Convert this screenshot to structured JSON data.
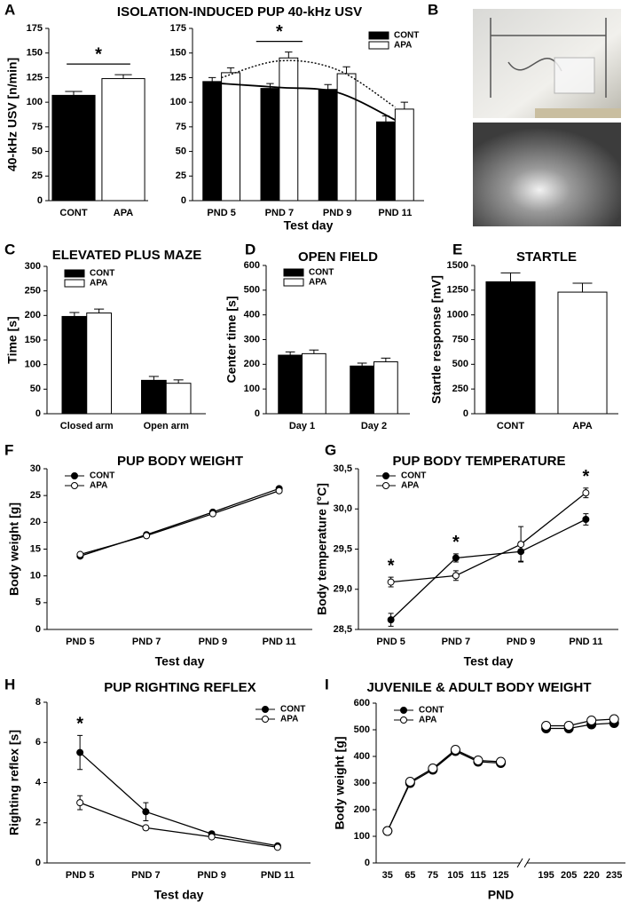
{
  "chart_data": [
    {
      "type": "bar",
      "panel": "A",
      "title": "ISOLATION-INDUCED PUP 40-kHz USV",
      "ylabel": "40-kHz USV [n/min]",
      "categories": [
        "CONT",
        "APA"
      ],
      "values": [
        107,
        124
      ],
      "errors": [
        4,
        4
      ],
      "colors": [
        "#000000",
        "#ffffff"
      ],
      "ylim": [
        0,
        175
      ],
      "yticks": [
        0,
        25,
        50,
        75,
        100,
        125,
        150,
        175
      ],
      "annotations": [
        {
          "text": "*"
        }
      ]
    },
    {
      "type": "bar",
      "xlabel": "Test day",
      "categories": [
        "PND 5",
        "PND 7",
        "PND 9",
        "PND 11"
      ],
      "series": [
        {
          "name": "CONT",
          "color": "#000000",
          "values": [
            121,
            114,
            113,
            80
          ],
          "errors": [
            4,
            5,
            5,
            6
          ]
        },
        {
          "name": "APA",
          "color": "#ffffff",
          "values": [
            130,
            145,
            129,
            93
          ],
          "errors": [
            5,
            6,
            7,
            7
          ]
        }
      ],
      "trends": [
        {
          "style": "solid",
          "values": [
            119,
            115,
            110,
            82
          ]
        },
        {
          "style": "dotted",
          "values": [
            125,
            142,
            133,
            95
          ]
        }
      ],
      "ylim": [
        0,
        175
      ],
      "yticks": [
        0,
        25,
        50,
        75,
        100,
        125,
        150,
        175
      ],
      "legend": "upper right",
      "annotations": [
        {
          "text": "*",
          "at": "PND 7"
        }
      ]
    },
    {
      "type": "image",
      "panel": "B"
    },
    {
      "type": "bar",
      "panel": "C",
      "title": "ELEVATED PLUS MAZE",
      "ylabel": "Time [s]",
      "categories": [
        "Closed arm",
        "Open arm"
      ],
      "series": [
        {
          "name": "CONT",
          "color": "#000000",
          "values": [
            198,
            68
          ],
          "errors": [
            8,
            8
          ]
        },
        {
          "name": "APA",
          "color": "#ffffff",
          "values": [
            205,
            62
          ],
          "errors": [
            8,
            7
          ]
        }
      ],
      "ylim": [
        0,
        300
      ],
      "yticks": [
        0,
        50,
        100,
        150,
        200,
        250,
        300
      ],
      "legend": "upper left"
    },
    {
      "type": "bar",
      "panel": "D",
      "title": "OPEN FIELD",
      "ylabel": "Center time [s]",
      "categories": [
        "Day 1",
        "Day 2"
      ],
      "series": [
        {
          "name": "CONT",
          "color": "#000000",
          "values": [
            237,
            193
          ],
          "errors": [
            13,
            12
          ]
        },
        {
          "name": "APA",
          "color": "#ffffff",
          "values": [
            243,
            210
          ],
          "errors": [
            15,
            15
          ]
        }
      ],
      "ylim": [
        0,
        600
      ],
      "yticks": [
        0,
        100,
        200,
        300,
        400,
        500,
        600
      ],
      "legend": "upper left"
    },
    {
      "type": "bar",
      "panel": "E",
      "title": "STARTLE",
      "ylabel": "Startle response [mV]",
      "categories": [
        "CONT",
        "APA"
      ],
      "values": [
        1335,
        1230
      ],
      "errors": [
        90,
        90
      ],
      "colors": [
        "#000000",
        "#ffffff"
      ],
      "ylim": [
        0,
        1500
      ],
      "yticks": [
        0,
        250,
        500,
        750,
        1000,
        1250,
        1500
      ]
    },
    {
      "type": "line",
      "panel": "F",
      "title": "PUP BODY WEIGHT",
      "ylabel": "Body weight [g]",
      "xlabel": "Test day",
      "categories": [
        "PND 5",
        "PND 7",
        "PND 9",
        "PND 11"
      ],
      "series": [
        {
          "name": "CONT",
          "color": "#000000",
          "marker_fill": "#000000",
          "values": [
            13.7,
            17.7,
            21.9,
            26.3
          ]
        },
        {
          "name": "APA",
          "color": "#000000",
          "marker_fill": "#ffffff",
          "values": [
            14.0,
            17.5,
            21.6,
            25.9
          ]
        }
      ],
      "ylim": [
        0,
        30
      ],
      "yticks": [
        0,
        5,
        10,
        15,
        20,
        25,
        30
      ],
      "legend": "upper left"
    },
    {
      "type": "line",
      "panel": "G",
      "title": "PUP BODY TEMPERATURE",
      "ylabel": "Body temperature [°C]",
      "xlabel": "Test day",
      "categories": [
        "PND 5",
        "PND 7",
        "PND 9",
        "PND 11"
      ],
      "series": [
        {
          "name": "CONT",
          "color": "#000000",
          "marker_fill": "#000000",
          "values": [
            28.62,
            29.39,
            29.47,
            29.87
          ],
          "errors": [
            0.08,
            0.05,
            0.12,
            0.07
          ]
        },
        {
          "name": "APA",
          "color": "#000000",
          "marker_fill": "#ffffff",
          "values": [
            29.09,
            29.17,
            29.56,
            30.2
          ],
          "errors": [
            0.06,
            0.06,
            0.22,
            0.06
          ]
        }
      ],
      "ylim": [
        28.5,
        30.5
      ],
      "yticks": [
        {
          "value": 28.5,
          "label": "28,5"
        },
        {
          "value": 29,
          "label": "29,0"
        },
        {
          "value": 29.5,
          "label": "29,5"
        },
        {
          "value": 30,
          "label": "30,0"
        },
        {
          "value": 30.5,
          "label": "30,5"
        }
      ],
      "legend": "upper left",
      "annotations": [
        {
          "text": "*",
          "at": "PND 5"
        },
        {
          "text": "*",
          "at": "PND 7"
        },
        {
          "text": "*",
          "at": "PND 11"
        }
      ]
    },
    {
      "type": "line",
      "panel": "H",
      "title": "PUP RIGHTING REFLEX",
      "ylabel": "Righting reflex [s]",
      "xlabel": "Test day",
      "categories": [
        "PND 5",
        "PND 7",
        "PND 9",
        "PND 11"
      ],
      "series": [
        {
          "name": "CONT",
          "color": "#000000",
          "marker_fill": "#000000",
          "values": [
            5.5,
            2.55,
            1.45,
            0.85
          ],
          "errors": [
            0.85,
            0.45,
            0.1,
            0.05
          ]
        },
        {
          "name": "APA",
          "color": "#000000",
          "marker_fill": "#ffffff",
          "values": [
            3.0,
            1.75,
            1.3,
            0.78
          ],
          "errors": [
            0.35,
            0.1,
            0.1,
            0.05
          ]
        }
      ],
      "ylim": [
        0,
        8
      ],
      "yticks": [
        0,
        2,
        4,
        6,
        8
      ],
      "legend": "upper right",
      "annotations": [
        {
          "text": "*",
          "at": "PND 5"
        }
      ]
    },
    {
      "type": "line",
      "panel": "I",
      "title": "JUVENILE & ADULT BODY WEIGHT",
      "ylabel": "Body weight [g]",
      "xlabel": "PND",
      "categories": [
        "35",
        "65",
        "75",
        "105",
        "115",
        "125",
        null,
        "195",
        "205",
        "220",
        "235"
      ],
      "series": [
        {
          "name": "CONT",
          "color": "#000000",
          "marker_fill": "#000000",
          "values": [
            120,
            300,
            350,
            420,
            380,
            375,
            null,
            505,
            505,
            520,
            525
          ]
        },
        {
          "name": "APA",
          "color": "#000000",
          "marker_fill": "#ffffff",
          "values": [
            120,
            305,
            355,
            425,
            385,
            380,
            null,
            515,
            515,
            535,
            540
          ]
        }
      ],
      "ylim": [
        0,
        600
      ],
      "yticks": [
        0,
        100,
        200,
        300,
        400,
        500,
        600
      ],
      "legend": "upper left"
    }
  ]
}
